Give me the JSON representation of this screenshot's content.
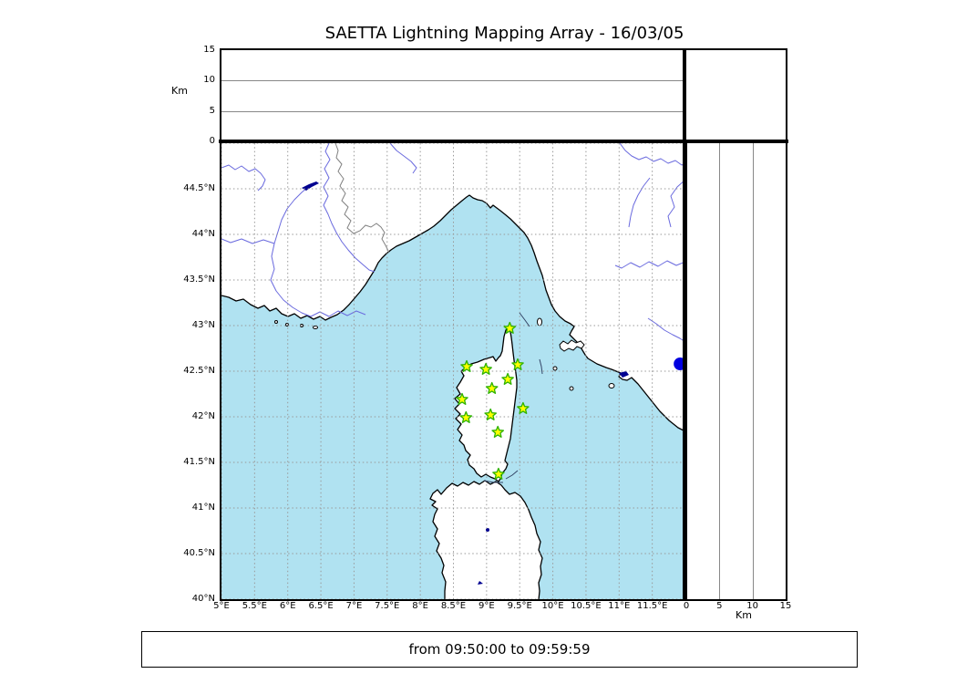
{
  "title": "SAETTA Lightning Mapping Array - 16/03/05",
  "footer": {
    "text": "from 09:50:00 to 09:59:59"
  },
  "colors": {
    "sea": "#b0e2f1",
    "land": "#ffffff",
    "coast": "#000000",
    "river": "#6a6ade",
    "lake": "#000090",
    "grid": "#999999",
    "panel_grid": "#888888",
    "country_border": "#808080",
    "contour_segment": "#334466",
    "station_fill": "#ffff00",
    "station_edge": "#2db200",
    "event_dot": "#0000e0"
  },
  "map": {
    "lon_min": 5,
    "lon_max": 12,
    "lat_min": 40,
    "lat_max": 45,
    "grid_step_deg": 0.5,
    "lon_tick_labels": [
      "5°E",
      "5.5°E",
      "6°E",
      "6.5°E",
      "7°E",
      "7.5°E",
      "8°E",
      "8.5°E",
      "9°E",
      "9.5°E",
      "10°E",
      "10.5°E",
      "11°E",
      "11.5°E"
    ],
    "lat_tick_labels": [
      "44.5°N",
      "44°N",
      "43.5°N",
      "43°N",
      "42.5°N",
      "42°N",
      "41.5°N",
      "41°N",
      "40.5°N",
      "40°N"
    ]
  },
  "alt_axis": {
    "label": "Km",
    "ticks": [
      "0",
      "5",
      "10",
      "15"
    ],
    "tick_values": [
      0,
      5,
      10,
      15
    ],
    "max": 15
  },
  "stations": [
    {
      "lon": 9.35,
      "lat": 42.97
    },
    {
      "lon": 8.7,
      "lat": 42.55
    },
    {
      "lon": 8.99,
      "lat": 42.52
    },
    {
      "lon": 9.47,
      "lat": 42.57
    },
    {
      "lon": 9.32,
      "lat": 42.41
    },
    {
      "lon": 9.08,
      "lat": 42.31
    },
    {
      "lon": 8.63,
      "lat": 42.19
    },
    {
      "lon": 9.55,
      "lat": 42.09
    },
    {
      "lon": 8.69,
      "lat": 41.99
    },
    {
      "lon": 9.06,
      "lat": 42.02
    },
    {
      "lon": 9.17,
      "lat": 41.83
    },
    {
      "lon": 9.18,
      "lat": 41.37
    }
  ],
  "event_points": [
    {
      "lon": 11.92,
      "lat": 42.58
    }
  ]
}
